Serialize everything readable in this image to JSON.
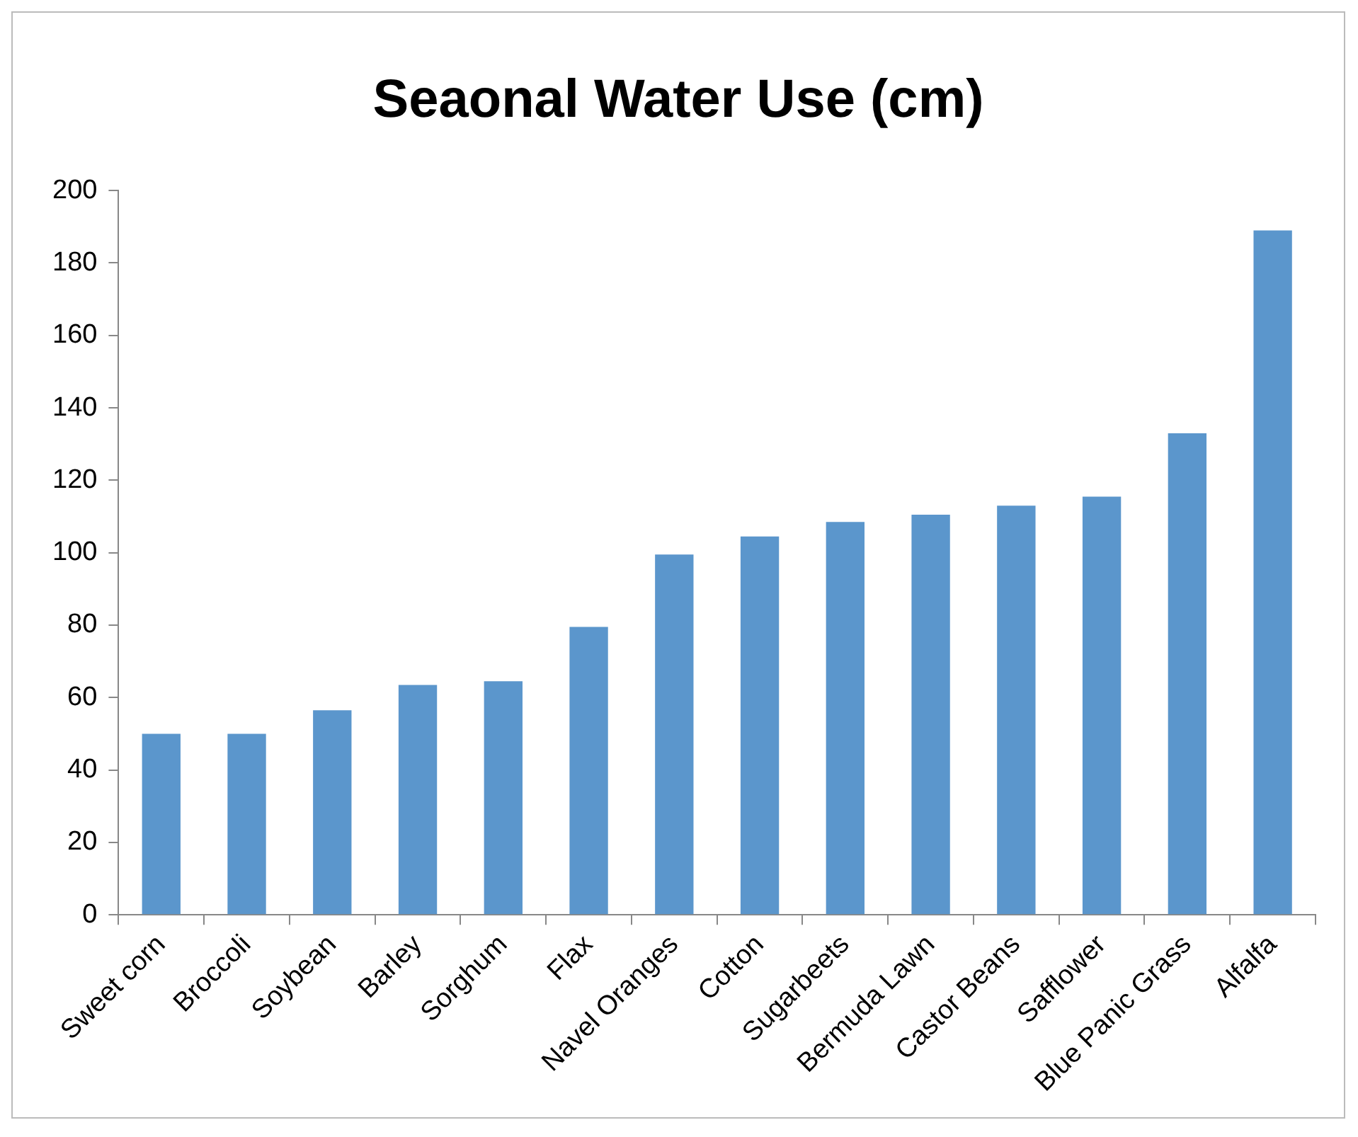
{
  "chart_data": {
    "type": "bar",
    "title": "Seaonal Water Use (cm)",
    "categories": [
      "Sweet corn",
      "Broccoli",
      "Soybean",
      "Barley",
      "Sorghum",
      "Flax",
      "Navel Oranges",
      "Cotton",
      "Sugarbeets",
      "Bermuda Lawn",
      "Castor Beans",
      "Safflower",
      "Blue Panic Grass",
      "Alfalfa"
    ],
    "values": [
      50,
      50,
      56.5,
      63.5,
      64.5,
      79.5,
      99.5,
      104.5,
      108.5,
      110.5,
      113,
      115.5,
      133,
      189
    ],
    "color": "#5b96cc",
    "ylim": [
      0,
      200
    ],
    "yticks": [
      0,
      20,
      40,
      60,
      80,
      100,
      120,
      140,
      160,
      180,
      200
    ],
    "grid": false,
    "legend": false
  }
}
